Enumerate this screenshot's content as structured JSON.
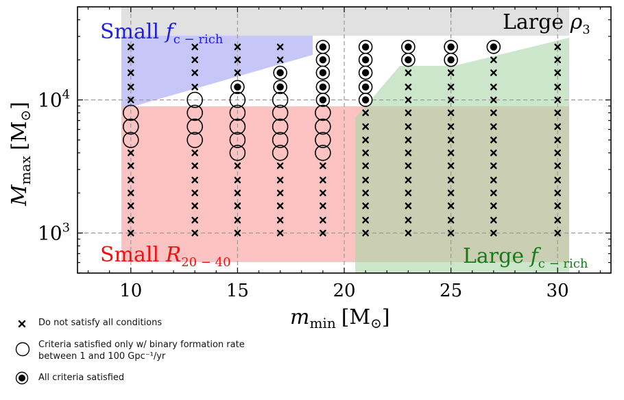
{
  "chart_data": {
    "type": "scatter",
    "xlabel_main": "m",
    "xlabel_sub": "min",
    "xlabel_unit": "[M",
    "xlabel_unit_sub": "⊙",
    "ylabel_main": "M",
    "ylabel_sub": "max",
    "ylabel_unit": "[M",
    "ylabel_unit_sub": "⊙",
    "x_ticks": [
      "10",
      "15",
      "20",
      "25",
      "30"
    ],
    "y_ticks": [
      {
        "value": 1000,
        "base": "10",
        "exp": "3"
      },
      {
        "value": 10000,
        "base": "10",
        "exp": "4"
      }
    ],
    "xlim": [
      7.5,
      32.5
    ],
    "ylim": [
      500,
      50000
    ],
    "y_scale": "log",
    "grid": "dashed at major ticks",
    "regions": [
      {
        "label": "Large ρ3",
        "color": "#d9d9d9"
      },
      {
        "label": "Small f c − rich",
        "color": "#b3b3f5"
      },
      {
        "label": "Small R 20 − 40",
        "color": "#fcb3b3"
      },
      {
        "label": "Large f c − rich",
        "color": "#b5ddb5"
      }
    ],
    "region_labels": {
      "large_rho": {
        "main": "Large ",
        "greek": "ρ",
        "sub": "3"
      },
      "small_fc": {
        "main": "Small ",
        "italic": "f",
        "sub": "c − rich"
      },
      "small_r": {
        "main": "Small ",
        "italic": "R",
        "sub": "20 − 40"
      },
      "large_fc": {
        "main": "Large ",
        "italic": "f",
        "sub": "c − rich"
      }
    },
    "columns": [
      {
        "x": 10,
        "points": [
          {
            "y": 25000,
            "s": "x"
          },
          {
            "y": 20000,
            "s": "x"
          },
          {
            "y": 16000,
            "s": "x"
          },
          {
            "y": 12500,
            "s": "x"
          },
          {
            "y": 10000,
            "s": "x"
          },
          {
            "y": 8000,
            "s": "o"
          },
          {
            "y": 6300,
            "s": "o"
          },
          {
            "y": 5000,
            "s": "o"
          },
          {
            "y": 4000,
            "s": "x"
          },
          {
            "y": 3200,
            "s": "x"
          },
          {
            "y": 2500,
            "s": "x"
          },
          {
            "y": 2000,
            "s": "x"
          },
          {
            "y": 1600,
            "s": "x"
          },
          {
            "y": 1250,
            "s": "x"
          },
          {
            "y": 1000,
            "s": "x"
          }
        ]
      },
      {
        "x": 13,
        "points": [
          {
            "y": 25000,
            "s": "x"
          },
          {
            "y": 20000,
            "s": "x"
          },
          {
            "y": 16000,
            "s": "x"
          },
          {
            "y": 12500,
            "s": "x"
          },
          {
            "y": 10000,
            "s": "o"
          },
          {
            "y": 8000,
            "s": "o"
          },
          {
            "y": 6300,
            "s": "o"
          },
          {
            "y": 5000,
            "s": "o"
          },
          {
            "y": 4000,
            "s": "x"
          },
          {
            "y": 3200,
            "s": "x"
          },
          {
            "y": 2500,
            "s": "x"
          },
          {
            "y": 2000,
            "s": "x"
          },
          {
            "y": 1600,
            "s": "x"
          },
          {
            "y": 1250,
            "s": "x"
          },
          {
            "y": 1000,
            "s": "x"
          }
        ]
      },
      {
        "x": 15,
        "points": [
          {
            "y": 25000,
            "s": "x"
          },
          {
            "y": 20000,
            "s": "x"
          },
          {
            "y": 16000,
            "s": "x"
          },
          {
            "y": 12500,
            "s": "f"
          },
          {
            "y": 10000,
            "s": "o"
          },
          {
            "y": 8000,
            "s": "o"
          },
          {
            "y": 6300,
            "s": "o"
          },
          {
            "y": 5000,
            "s": "o"
          },
          {
            "y": 4000,
            "s": "o"
          },
          {
            "y": 3200,
            "s": "x"
          },
          {
            "y": 2500,
            "s": "x"
          },
          {
            "y": 2000,
            "s": "x"
          },
          {
            "y": 1600,
            "s": "x"
          },
          {
            "y": 1250,
            "s": "x"
          },
          {
            "y": 1000,
            "s": "x"
          }
        ]
      },
      {
        "x": 17,
        "points": [
          {
            "y": 25000,
            "s": "x"
          },
          {
            "y": 20000,
            "s": "x"
          },
          {
            "y": 16000,
            "s": "f"
          },
          {
            "y": 12500,
            "s": "f"
          },
          {
            "y": 10000,
            "s": "o"
          },
          {
            "y": 8000,
            "s": "o"
          },
          {
            "y": 6300,
            "s": "o"
          },
          {
            "y": 5000,
            "s": "o"
          },
          {
            "y": 4000,
            "s": "o"
          },
          {
            "y": 3200,
            "s": "x"
          },
          {
            "y": 2500,
            "s": "x"
          },
          {
            "y": 2000,
            "s": "x"
          },
          {
            "y": 1600,
            "s": "x"
          },
          {
            "y": 1250,
            "s": "x"
          },
          {
            "y": 1000,
            "s": "x"
          }
        ]
      },
      {
        "x": 19,
        "points": [
          {
            "y": 25000,
            "s": "f"
          },
          {
            "y": 20000,
            "s": "f"
          },
          {
            "y": 16000,
            "s": "f"
          },
          {
            "y": 12500,
            "s": "f"
          },
          {
            "y": 10000,
            "s": "f"
          },
          {
            "y": 8000,
            "s": "o"
          },
          {
            "y": 6300,
            "s": "o"
          },
          {
            "y": 5000,
            "s": "o"
          },
          {
            "y": 4000,
            "s": "o"
          },
          {
            "y": 3200,
            "s": "x"
          },
          {
            "y": 2500,
            "s": "x"
          },
          {
            "y": 2000,
            "s": "x"
          },
          {
            "y": 1600,
            "s": "x"
          },
          {
            "y": 1250,
            "s": "x"
          },
          {
            "y": 1000,
            "s": "x"
          }
        ]
      },
      {
        "x": 21,
        "points": [
          {
            "y": 25000,
            "s": "f"
          },
          {
            "y": 20000,
            "s": "f"
          },
          {
            "y": 16000,
            "s": "f"
          },
          {
            "y": 12500,
            "s": "f"
          },
          {
            "y": 10000,
            "s": "f"
          },
          {
            "y": 8000,
            "s": "x"
          },
          {
            "y": 6300,
            "s": "x"
          },
          {
            "y": 5000,
            "s": "x"
          },
          {
            "y": 4000,
            "s": "x"
          },
          {
            "y": 3200,
            "s": "x"
          },
          {
            "y": 2500,
            "s": "x"
          },
          {
            "y": 2000,
            "s": "x"
          },
          {
            "y": 1600,
            "s": "x"
          },
          {
            "y": 1250,
            "s": "x"
          },
          {
            "y": 1000,
            "s": "x"
          }
        ]
      },
      {
        "x": 23,
        "points": [
          {
            "y": 25000,
            "s": "f"
          },
          {
            "y": 20000,
            "s": "f"
          },
          {
            "y": 16000,
            "s": "x"
          },
          {
            "y": 12500,
            "s": "x"
          },
          {
            "y": 10000,
            "s": "x"
          },
          {
            "y": 8000,
            "s": "x"
          },
          {
            "y": 6300,
            "s": "x"
          },
          {
            "y": 5000,
            "s": "x"
          },
          {
            "y": 4000,
            "s": "x"
          },
          {
            "y": 3200,
            "s": "x"
          },
          {
            "y": 2500,
            "s": "x"
          },
          {
            "y": 2000,
            "s": "x"
          },
          {
            "y": 1600,
            "s": "x"
          },
          {
            "y": 1250,
            "s": "x"
          },
          {
            "y": 1000,
            "s": "x"
          }
        ]
      },
      {
        "x": 25,
        "points": [
          {
            "y": 25000,
            "s": "f"
          },
          {
            "y": 20000,
            "s": "f"
          },
          {
            "y": 16000,
            "s": "x"
          },
          {
            "y": 12500,
            "s": "x"
          },
          {
            "y": 10000,
            "s": "x"
          },
          {
            "y": 8000,
            "s": "x"
          },
          {
            "y": 6300,
            "s": "x"
          },
          {
            "y": 5000,
            "s": "x"
          },
          {
            "y": 4000,
            "s": "x"
          },
          {
            "y": 3200,
            "s": "x"
          },
          {
            "y": 2500,
            "s": "x"
          },
          {
            "y": 2000,
            "s": "x"
          },
          {
            "y": 1600,
            "s": "x"
          },
          {
            "y": 1250,
            "s": "x"
          },
          {
            "y": 1000,
            "s": "x"
          }
        ]
      },
      {
        "x": 27,
        "points": [
          {
            "y": 25000,
            "s": "f"
          },
          {
            "y": 20000,
            "s": "x"
          },
          {
            "y": 16000,
            "s": "x"
          },
          {
            "y": 12500,
            "s": "x"
          },
          {
            "y": 10000,
            "s": "x"
          },
          {
            "y": 8000,
            "s": "x"
          },
          {
            "y": 6300,
            "s": "x"
          },
          {
            "y": 5000,
            "s": "x"
          },
          {
            "y": 4000,
            "s": "x"
          },
          {
            "y": 3200,
            "s": "x"
          },
          {
            "y": 2500,
            "s": "x"
          },
          {
            "y": 2000,
            "s": "x"
          },
          {
            "y": 1600,
            "s": "x"
          },
          {
            "y": 1250,
            "s": "x"
          },
          {
            "y": 1000,
            "s": "x"
          }
        ]
      },
      {
        "x": 30,
        "points": [
          {
            "y": 25000,
            "s": "x"
          },
          {
            "y": 20000,
            "s": "x"
          },
          {
            "y": 16000,
            "s": "x"
          },
          {
            "y": 12500,
            "s": "x"
          },
          {
            "y": 10000,
            "s": "x"
          },
          {
            "y": 8000,
            "s": "x"
          },
          {
            "y": 6300,
            "s": "x"
          },
          {
            "y": 5000,
            "s": "x"
          },
          {
            "y": 4000,
            "s": "x"
          },
          {
            "y": 3200,
            "s": "x"
          },
          {
            "y": 2500,
            "s": "x"
          },
          {
            "y": 2000,
            "s": "x"
          },
          {
            "y": 1600,
            "s": "x"
          },
          {
            "y": 1250,
            "s": "x"
          },
          {
            "y": 1000,
            "s": "x"
          }
        ]
      }
    ]
  },
  "legend": {
    "cross_label": "Do not satisfy all conditions",
    "open_label_line1": "Criteria satisfied only w/ binary formation rate",
    "open_label_line2": "between 1 and 100 Gpc⁻¹/yr",
    "filled_label": "All criteria satisfied"
  }
}
